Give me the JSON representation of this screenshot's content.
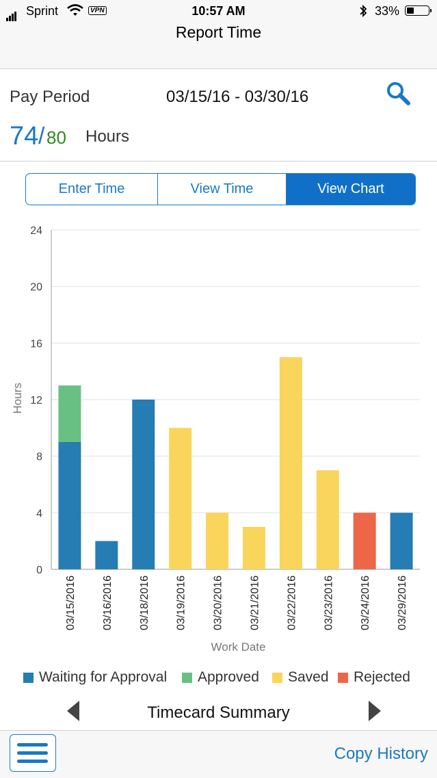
{
  "status": {
    "carrier": "Sprint",
    "vpn": "VPN",
    "time": "10:57 AM",
    "battery": "33%",
    "battery_level": 0.33
  },
  "nav": {
    "title": "Report Time"
  },
  "pay_period": {
    "label": "Pay Period",
    "dates": "03/15/16 - 03/30/16",
    "hours_reported": "74",
    "separator": "/",
    "hours_total": "80",
    "hours_label": "Hours"
  },
  "tabs": [
    {
      "label": "Enter Time",
      "selected": false
    },
    {
      "label": "View Time",
      "selected": false
    },
    {
      "label": "View Chart",
      "selected": true
    }
  ],
  "chart_data": {
    "type": "bar",
    "stacked": true,
    "xlabel": "Work Date",
    "ylabel": "Hours",
    "ylim": [
      0,
      24
    ],
    "yticks": [
      0,
      4,
      8,
      12,
      16,
      20,
      24
    ],
    "grid": true,
    "legend_position": "bottom",
    "categories": [
      "03/15/2016",
      "03/16/2016",
      "03/18/2016",
      "03/19/2016",
      "03/20/2016",
      "03/21/2016",
      "03/22/2016",
      "03/23/2016",
      "03/24/2016",
      "03/29/2016"
    ],
    "series": [
      {
        "name": "Waiting for Approval",
        "color": "#267db3",
        "values": [
          9,
          2,
          12,
          0,
          0,
          0,
          0,
          0,
          0,
          4
        ]
      },
      {
        "name": "Approved",
        "color": "#68c182",
        "values": [
          4,
          0,
          0,
          0,
          0,
          0,
          0,
          0,
          0,
          0
        ]
      },
      {
        "name": "Saved",
        "color": "#fad55c",
        "values": [
          0,
          0,
          0,
          10,
          4,
          3,
          15,
          7,
          0,
          0
        ]
      },
      {
        "name": "Rejected",
        "color": "#ed6647",
        "values": [
          0,
          0,
          0,
          0,
          0,
          0,
          0,
          0,
          4,
          0
        ]
      }
    ]
  },
  "summary": {
    "title": "Timecard Summary"
  },
  "footer": {
    "copy_history": "Copy History"
  },
  "colors": {
    "accent": "#1979c3",
    "approved_total": "#2a8a1f"
  },
  "icons": {
    "search": "search-icon",
    "menu": "menu-icon",
    "prev": "previous-arrow-icon",
    "next": "next-arrow-icon"
  }
}
